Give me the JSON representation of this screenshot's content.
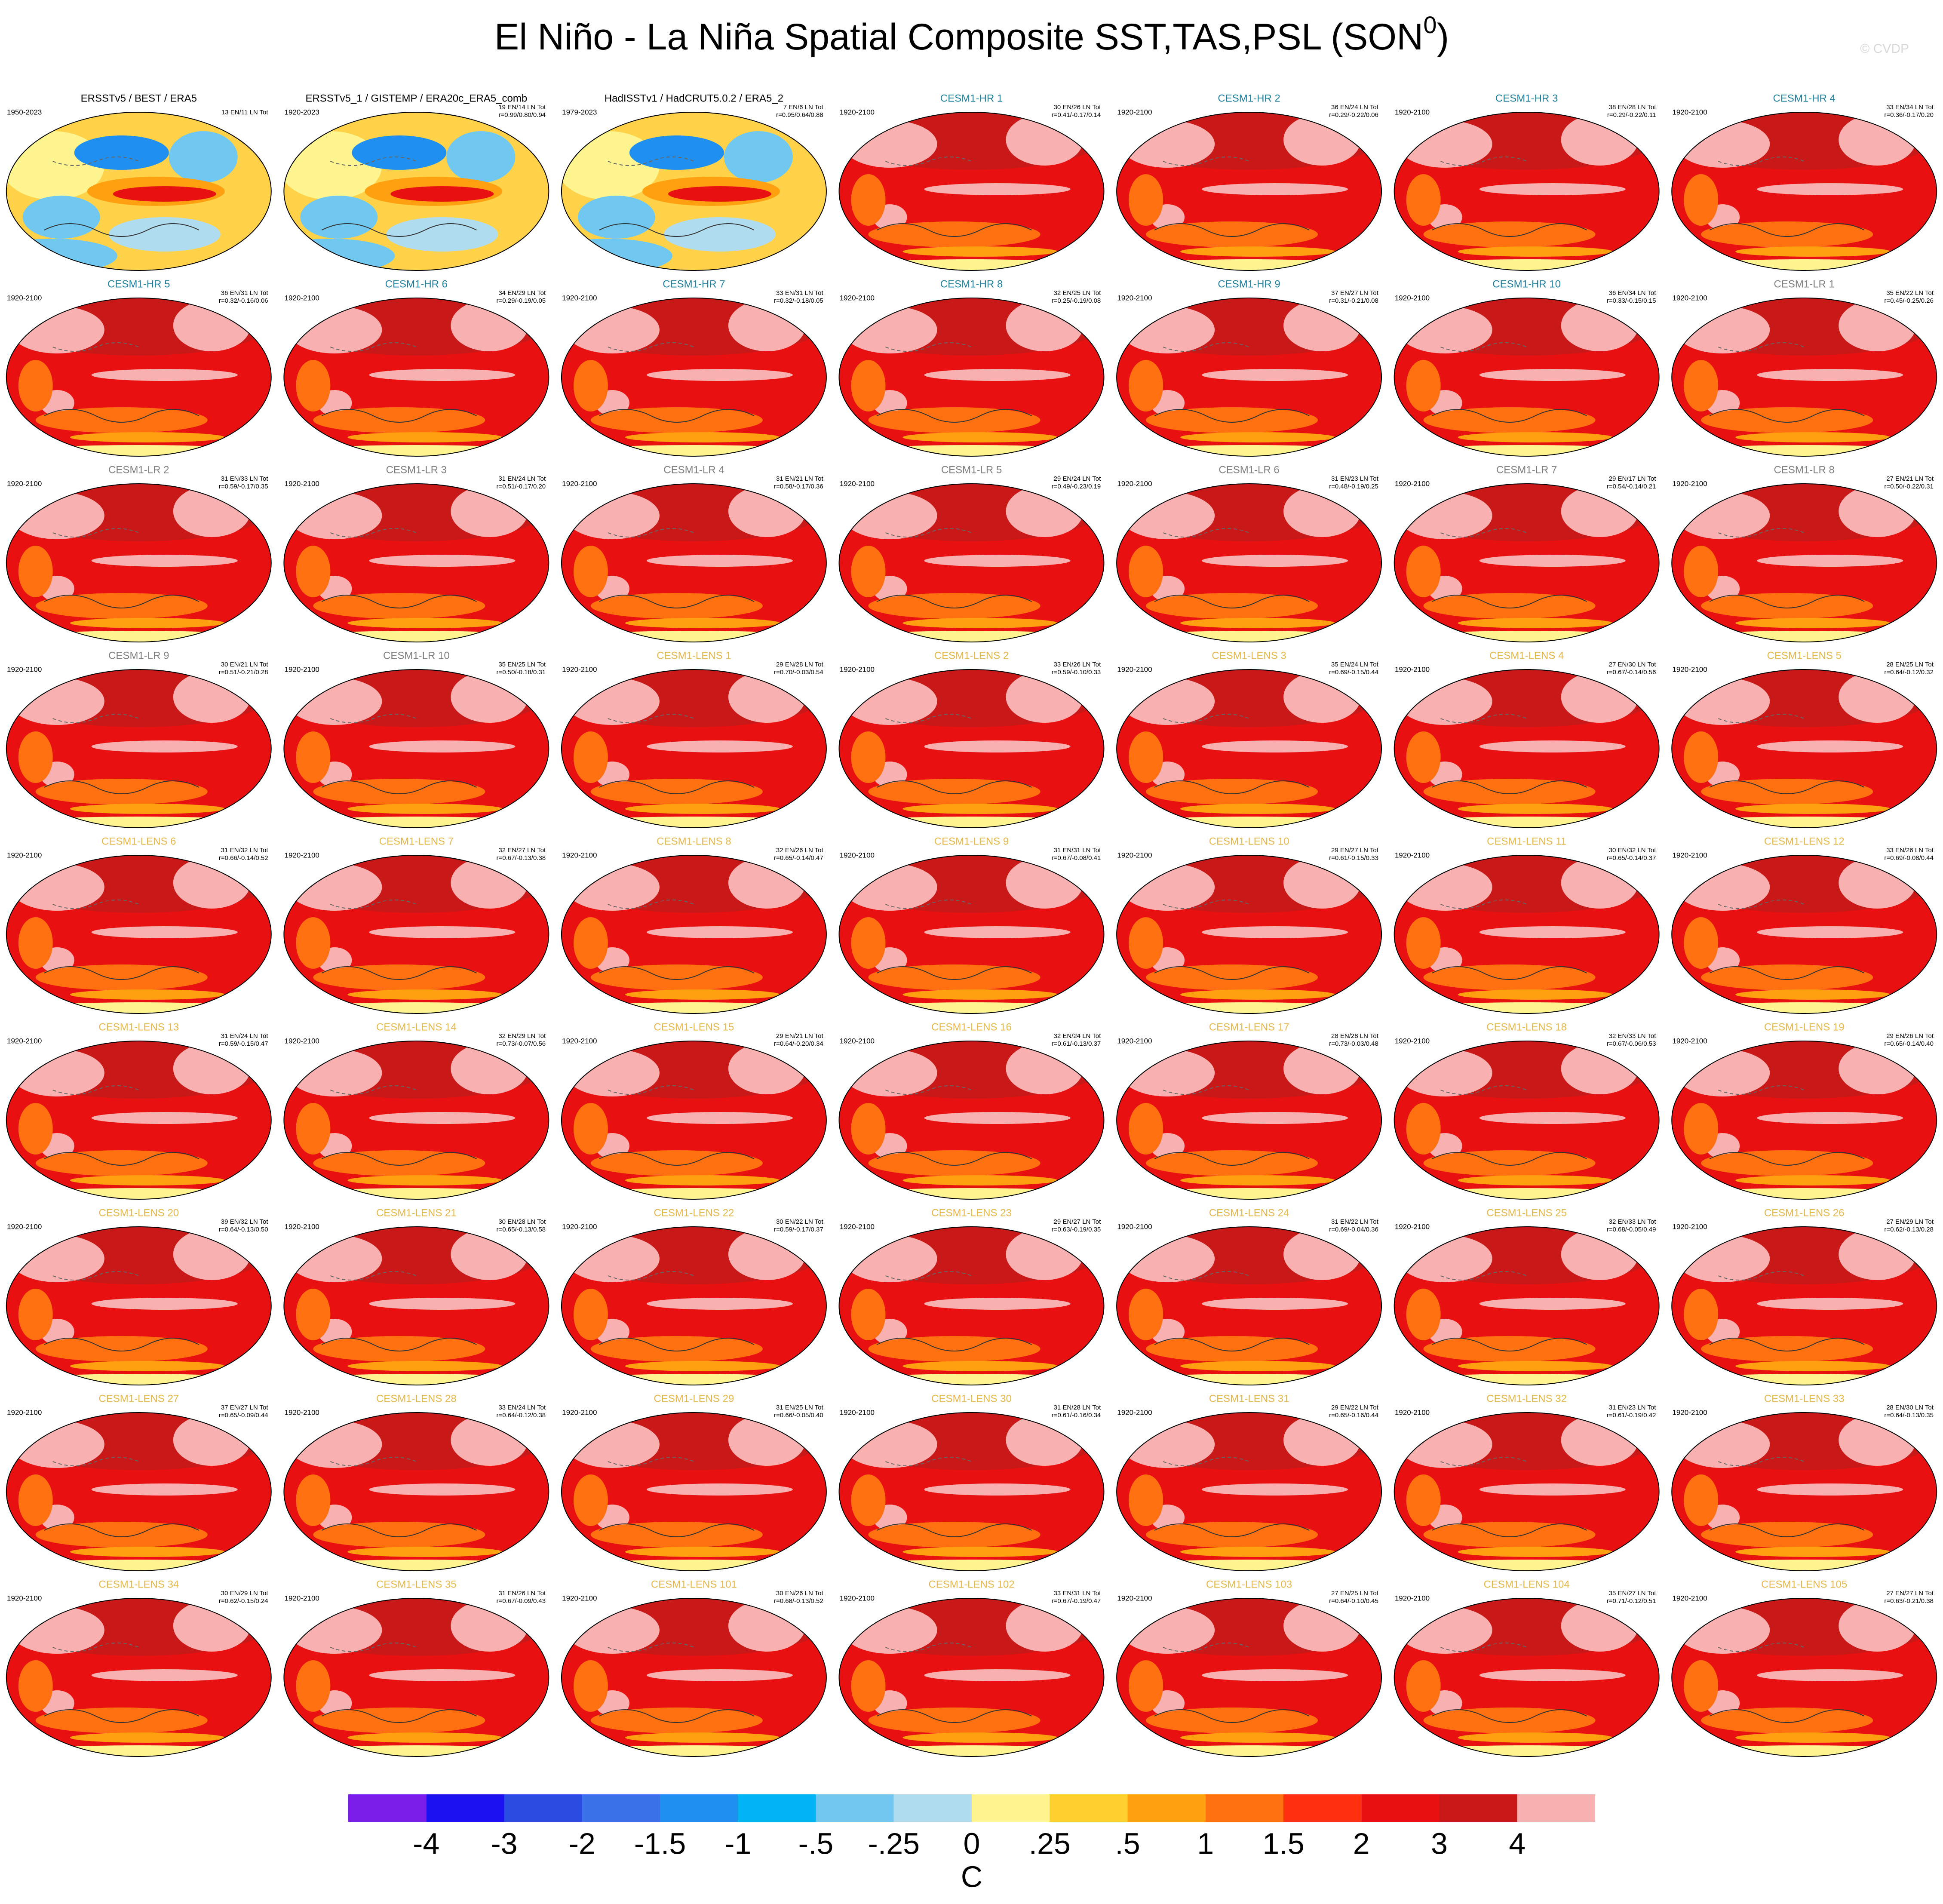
{
  "title": "El Niño - La Niña Spatial Composite SST,TAS,PSL (SON",
  "title_sup": "0",
  "title_end": ")",
  "watermark": "© CVDP",
  "panels": [
    {
      "title": "ERSSTv5 / BEST / ERA5",
      "title_color": "#000000",
      "years": "1950-2023",
      "counts": "13 EN/11 LN Tot",
      "obs": true
    },
    {
      "title": "ERSSTv5_1 / GISTEMP / ERA20c_ERA5_comb",
      "title_color": "#000000",
      "years": "1920-2023",
      "counts": "19 EN/14 LN Tot",
      "r": "r=0.99/0.80/0.94",
      "obs": true
    },
    {
      "title": "HadISSTv1 / HadCRUT5.0.2 / ERA5_2",
      "title_color": "#000000",
      "years": "1979-2023",
      "counts": "7 EN/6 LN Tot",
      "r": "r=0.95/0.64/0.88",
      "obs": true
    },
    {
      "title": "CESM1-HR 1",
      "title_color": "#1f7f9c",
      "years": "1920-2100",
      "counts": "30 EN/26 LN Tot",
      "r": "r=0.41/-0.17/0.14"
    },
    {
      "title": "CESM1-HR 2",
      "title_color": "#1f7f9c",
      "years": "1920-2100",
      "counts": "36 EN/24 LN Tot",
      "r": "r=0.29/-0.22/0.06"
    },
    {
      "title": "CESM1-HR 3",
      "title_color": "#1f7f9c",
      "years": "1920-2100",
      "counts": "38 EN/28 LN Tot",
      "r": "r=0.29/-0.22/0.11"
    },
    {
      "title": "CESM1-HR 4",
      "title_color": "#1f7f9c",
      "years": "1920-2100",
      "counts": "33 EN/34 LN Tot",
      "r": "r=0.36/-0.17/0.20"
    },
    {
      "title": "CESM1-HR 5",
      "title_color": "#1f7f9c",
      "years": "1920-2100",
      "counts": "36 EN/31 LN Tot",
      "r": "r=0.32/-0.16/0.06"
    },
    {
      "title": "CESM1-HR 6",
      "title_color": "#1f7f9c",
      "years": "1920-2100",
      "counts": "34 EN/29 LN Tot",
      "r": "r=0.29/-0.19/0.05"
    },
    {
      "title": "CESM1-HR 7",
      "title_color": "#1f7f9c",
      "years": "1920-2100",
      "counts": "33 EN/31 LN Tot",
      "r": "r=0.32/-0.18/0.05"
    },
    {
      "title": "CESM1-HR 8",
      "title_color": "#1f7f9c",
      "years": "1920-2100",
      "counts": "32 EN/25 LN Tot",
      "r": "r=0.25/-0.19/0.08"
    },
    {
      "title": "CESM1-HR 9",
      "title_color": "#1f7f9c",
      "years": "1920-2100",
      "counts": "37 EN/27 LN Tot",
      "r": "r=0.31/-0.21/0.08"
    },
    {
      "title": "CESM1-HR 10",
      "title_color": "#1f7f9c",
      "years": "1920-2100",
      "counts": "36 EN/34 LN Tot",
      "r": "r=0.33/-0.15/0.15"
    },
    {
      "title": "CESM1-LR 1",
      "title_color": "#808080",
      "years": "1920-2100",
      "counts": "35 EN/22 LN Tot",
      "r": "r=0.45/-0.25/0.26"
    },
    {
      "title": "CESM1-LR 2",
      "title_color": "#808080",
      "years": "1920-2100",
      "counts": "31 EN/33 LN Tot",
      "r": "r=0.59/-0.17/0.35"
    },
    {
      "title": "CESM1-LR 3",
      "title_color": "#808080",
      "years": "1920-2100",
      "counts": "31 EN/24 LN Tot",
      "r": "r=0.51/-0.17/0.20"
    },
    {
      "title": "CESM1-LR 4",
      "title_color": "#808080",
      "years": "1920-2100",
      "counts": "31 EN/21 LN Tot",
      "r": "r=0.58/-0.17/0.36"
    },
    {
      "title": "CESM1-LR 5",
      "title_color": "#808080",
      "years": "1920-2100",
      "counts": "29 EN/24 LN Tot",
      "r": "r=0.49/-0.23/0.19"
    },
    {
      "title": "CESM1-LR 6",
      "title_color": "#808080",
      "years": "1920-2100",
      "counts": "31 EN/23 LN Tot",
      "r": "r=0.48/-0.19/0.25"
    },
    {
      "title": "CESM1-LR 7",
      "title_color": "#808080",
      "years": "1920-2100",
      "counts": "29 EN/17 LN Tot",
      "r": "r=0.54/-0.14/0.21"
    },
    {
      "title": "CESM1-LR 8",
      "title_color": "#808080",
      "years": "1920-2100",
      "counts": "27 EN/21 LN Tot",
      "r": "r=0.50/-0.22/0.31"
    },
    {
      "title": "CESM1-LR 9",
      "title_color": "#808080",
      "years": "1920-2100",
      "counts": "30 EN/21 LN Tot",
      "r": "r=0.51/-0.21/0.28"
    },
    {
      "title": "CESM1-LR 10",
      "title_color": "#808080",
      "years": "1920-2100",
      "counts": "35 EN/25 LN Tot",
      "r": "r=0.50/-0.18/0.31"
    },
    {
      "title": "CESM1-LENS 1",
      "title_color": "#e6b84a",
      "years": "1920-2100",
      "counts": "29 EN/28 LN Tot",
      "r": "r=0.70/-0.03/0.54"
    },
    {
      "title": "CESM1-LENS 2",
      "title_color": "#e6b84a",
      "years": "1920-2100",
      "counts": "33 EN/26 LN Tot",
      "r": "r=0.59/-0.10/0.33"
    },
    {
      "title": "CESM1-LENS 3",
      "title_color": "#e6b84a",
      "years": "1920-2100",
      "counts": "35 EN/24 LN Tot",
      "r": "r=0.69/-0.15/0.44"
    },
    {
      "title": "CESM1-LENS 4",
      "title_color": "#e6b84a",
      "years": "1920-2100",
      "counts": "27 EN/30 LN Tot",
      "r": "r=0.67/-0.14/0.56"
    },
    {
      "title": "CESM1-LENS 5",
      "title_color": "#e6b84a",
      "years": "1920-2100",
      "counts": "28 EN/25 LN Tot",
      "r": "r=0.64/-0.12/0.32"
    },
    {
      "title": "CESM1-LENS 6",
      "title_color": "#e6b84a",
      "years": "1920-2100",
      "counts": "31 EN/32 LN Tot",
      "r": "r=0.66/-0.14/0.52"
    },
    {
      "title": "CESM1-LENS 7",
      "title_color": "#e6b84a",
      "years": "1920-2100",
      "counts": "32 EN/27 LN Tot",
      "r": "r=0.67/-0.13/0.38"
    },
    {
      "title": "CESM1-LENS 8",
      "title_color": "#e6b84a",
      "years": "1920-2100",
      "counts": "32 EN/26 LN Tot",
      "r": "r=0.65/-0.14/0.47"
    },
    {
      "title": "CESM1-LENS 9",
      "title_color": "#e6b84a",
      "years": "1920-2100",
      "counts": "31 EN/31 LN Tot",
      "r": "r=0.67/-0.08/0.41"
    },
    {
      "title": "CESM1-LENS 10",
      "title_color": "#e6b84a",
      "years": "1920-2100",
      "counts": "29 EN/27 LN Tot",
      "r": "r=0.61/-0.15/0.33"
    },
    {
      "title": "CESM1-LENS 11",
      "title_color": "#e6b84a",
      "years": "1920-2100",
      "counts": "30 EN/32 LN Tot",
      "r": "r=0.65/-0.14/0.37"
    },
    {
      "title": "CESM1-LENS 12",
      "title_color": "#e6b84a",
      "years": "1920-2100",
      "counts": "33 EN/26 LN Tot",
      "r": "r=0.69/-0.08/0.44"
    },
    {
      "title": "CESM1-LENS 13",
      "title_color": "#e6b84a",
      "years": "1920-2100",
      "counts": "31 EN/24 LN Tot",
      "r": "r=0.59/-0.15/0.47"
    },
    {
      "title": "CESM1-LENS 14",
      "title_color": "#e6b84a",
      "years": "1920-2100",
      "counts": "32 EN/29 LN Tot",
      "r": "r=0.73/-0.07/0.56"
    },
    {
      "title": "CESM1-LENS 15",
      "title_color": "#e6b84a",
      "years": "1920-2100",
      "counts": "29 EN/21 LN Tot",
      "r": "r=0.64/-0.20/0.34"
    },
    {
      "title": "CESM1-LENS 16",
      "title_color": "#e6b84a",
      "years": "1920-2100",
      "counts": "32 EN/24 LN Tot",
      "r": "r=0.61/-0.13/0.37"
    },
    {
      "title": "CESM1-LENS 17",
      "title_color": "#e6b84a",
      "years": "1920-2100",
      "counts": "28 EN/28 LN Tot",
      "r": "r=0.73/-0.03/0.48"
    },
    {
      "title": "CESM1-LENS 18",
      "title_color": "#e6b84a",
      "years": "1920-2100",
      "counts": "32 EN/33 LN Tot",
      "r": "r=0.67/-0.06/0.53"
    },
    {
      "title": "CESM1-LENS 19",
      "title_color": "#e6b84a",
      "years": "1920-2100",
      "counts": "29 EN/26 LN Tot",
      "r": "r=0.65/-0.14/0.40"
    },
    {
      "title": "CESM1-LENS 20",
      "title_color": "#e6b84a",
      "years": "1920-2100",
      "counts": "39 EN/32 LN Tot",
      "r": "r=0.64/-0.13/0.50"
    },
    {
      "title": "CESM1-LENS 21",
      "title_color": "#e6b84a",
      "years": "1920-2100",
      "counts": "30 EN/28 LN Tot",
      "r": "r=0.65/-0.13/0.58"
    },
    {
      "title": "CESM1-LENS 22",
      "title_color": "#e6b84a",
      "years": "1920-2100",
      "counts": "30 EN/22 LN Tot",
      "r": "r=0.59/-0.17/0.37"
    },
    {
      "title": "CESM1-LENS 23",
      "title_color": "#e6b84a",
      "years": "1920-2100",
      "counts": "29 EN/27 LN Tot",
      "r": "r=0.63/-0.19/0.35"
    },
    {
      "title": "CESM1-LENS 24",
      "title_color": "#e6b84a",
      "years": "1920-2100",
      "counts": "31 EN/22 LN Tot",
      "r": "r=0.69/-0.04/0.36"
    },
    {
      "title": "CESM1-LENS 25",
      "title_color": "#e6b84a",
      "years": "1920-2100",
      "counts": "32 EN/33 LN Tot",
      "r": "r=0.68/-0.05/0.49"
    },
    {
      "title": "CESM1-LENS 26",
      "title_color": "#e6b84a",
      "years": "1920-2100",
      "counts": "27 EN/29 LN Tot",
      "r": "r=0.62/-0.13/0.28"
    },
    {
      "title": "CESM1-LENS 27",
      "title_color": "#e6b84a",
      "years": "1920-2100",
      "counts": "37 EN/27 LN Tot",
      "r": "r=0.65/-0.09/0.44"
    },
    {
      "title": "CESM1-LENS 28",
      "title_color": "#e6b84a",
      "years": "1920-2100",
      "counts": "33 EN/24 LN Tot",
      "r": "r=0.64/-0.12/0.38"
    },
    {
      "title": "CESM1-LENS 29",
      "title_color": "#e6b84a",
      "years": "1920-2100",
      "counts": "31 EN/25 LN Tot",
      "r": "r=0.66/-0.05/0.40"
    },
    {
      "title": "CESM1-LENS 30",
      "title_color": "#e6b84a",
      "years": "1920-2100",
      "counts": "31 EN/28 LN Tot",
      "r": "r=0.61/-0.16/0.34"
    },
    {
      "title": "CESM1-LENS 31",
      "title_color": "#e6b84a",
      "years": "1920-2100",
      "counts": "29 EN/22 LN Tot",
      "r": "r=0.65/-0.16/0.44"
    },
    {
      "title": "CESM1-LENS 32",
      "title_color": "#e6b84a",
      "years": "1920-2100",
      "counts": "31 EN/23 LN Tot",
      "r": "r=0.61/-0.19/0.42"
    },
    {
      "title": "CESM1-LENS 33",
      "title_color": "#e6b84a",
      "years": "1920-2100",
      "counts": "28 EN/30 LN Tot",
      "r": "r=0.64/-0.13/0.35"
    },
    {
      "title": "CESM1-LENS 34",
      "title_color": "#e6b84a",
      "years": "1920-2100",
      "counts": "30 EN/29 LN Tot",
      "r": "r=0.62/-0.15/0.24"
    },
    {
      "title": "CESM1-LENS 35",
      "title_color": "#e6b84a",
      "years": "1920-2100",
      "counts": "31 EN/26 LN Tot",
      "r": "r=0.67/-0.09/0.43"
    },
    {
      "title": "CESM1-LENS 101",
      "title_color": "#e6b84a",
      "years": "1920-2100",
      "counts": "30 EN/26 LN Tot",
      "r": "r=0.68/-0.13/0.52"
    },
    {
      "title": "CESM1-LENS 102",
      "title_color": "#e6b84a",
      "years": "1920-2100",
      "counts": "33 EN/31 LN Tot",
      "r": "r=0.67/-0.19/0.47"
    },
    {
      "title": "CESM1-LENS 103",
      "title_color": "#e6b84a",
      "years": "1920-2100",
      "counts": "27 EN/25 LN Tot",
      "r": "r=0.64/-0.10/0.45"
    },
    {
      "title": "CESM1-LENS 104",
      "title_color": "#e6b84a",
      "years": "1920-2100",
      "counts": "35 EN/27 LN Tot",
      "r": "r=0.71/-0.12/0.51"
    },
    {
      "title": "CESM1-LENS 105",
      "title_color": "#e6b84a",
      "years": "1920-2100",
      "counts": "27 EN/27 LN Tot",
      "r": "r=0.63/-0.21/0.38"
    }
  ],
  "colorbar": {
    "colors": [
      "#7b1fe8",
      "#1a10f0",
      "#2a4ce0",
      "#3a70e8",
      "#2090f0",
      "#00b4f5",
      "#70c8f0",
      "#b0dcf0",
      "#fff590",
      "#ffd030",
      "#ffa010",
      "#ff7010",
      "#ff3010",
      "#e81010",
      "#c81818",
      "#f8b0b0"
    ],
    "ticks": [
      -4,
      -3,
      -2,
      -1.5,
      -1,
      {
        "value": -0.5,
        "label": "-.5"
      },
      {
        "value": -0.25,
        "label": "-.25"
      },
      0,
      {
        "value": 0.25,
        "label": ".25"
      },
      {
        "value": 0.5,
        "label": ".5"
      },
      1,
      1.5,
      2,
      3,
      4
    ],
    "unit": "C"
  }
}
